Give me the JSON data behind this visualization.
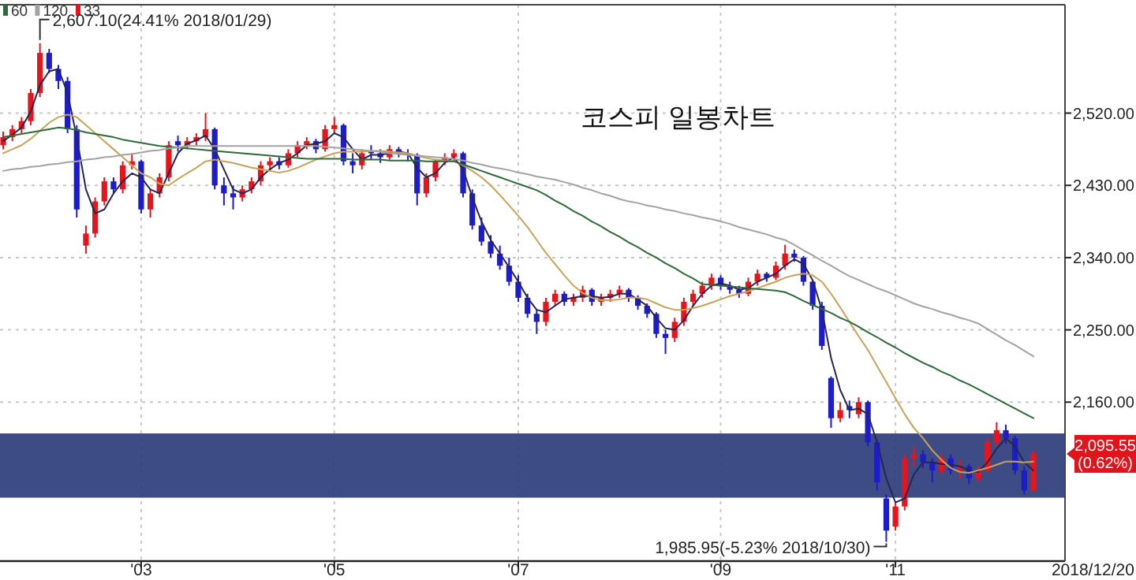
{
  "chart_data": {
    "type": "candlestick",
    "title": "코스피 일봉차트",
    "categories": [
      null,
      null,
      null,
      null,
      null,
      null,
      null,
      null,
      null,
      null,
      null,
      null,
      null,
      null,
      null,
      "'03",
      null,
      null,
      null,
      null,
      null,
      null,
      null,
      null,
      null,
      null,
      null,
      null,
      null,
      null,
      null,
      null,
      null,
      null,
      null,
      null,
      "'05",
      null,
      null,
      null,
      null,
      null,
      null,
      null,
      null,
      null,
      null,
      null,
      null,
      null,
      null,
      null,
      null,
      null,
      null,
      null,
      "'07",
      null,
      null,
      null,
      null,
      null,
      null,
      null,
      null,
      null,
      null,
      null,
      null,
      null,
      null,
      null,
      null,
      null,
      null,
      null,
      null,
      null,
      "'09",
      null,
      null,
      null,
      null,
      null,
      null,
      null,
      null,
      null,
      null,
      null,
      null,
      null,
      null,
      null,
      null,
      null,
      null,
      "'11",
      null,
      null,
      null,
      null,
      null,
      null,
      null,
      null,
      null,
      null,
      null,
      null,
      null,
      null,
      null
    ],
    "ylim": [
      1962,
      2655
    ],
    "yticks": [
      {
        "value": 2160,
        "label": "2,160.00"
      },
      {
        "value": 2250,
        "label": "2,250.00"
      },
      {
        "value": 2340,
        "label": "2,340.00"
      },
      {
        "value": 2430,
        "label": "2,430.00"
      },
      {
        "value": 2520,
        "label": "2,520.00"
      }
    ],
    "grid": true,
    "legend": "top left",
    "bands": [
      {
        "axis": "y",
        "from": 2041,
        "to": 2121,
        "color": "#2e3d7c"
      }
    ],
    "annotations": [
      "2,607.10(24.41% 2018/01/29)",
      "1,985.95(-5.23% 2018/10/30)",
      "2,095.55 (0.62%)",
      "2018/12/20"
    ],
    "series": [
      {
        "name": "33",
        "colors": [
          "#e8141b",
          "#e8141b",
          "#e8141b",
          "#e8141b",
          "#e8141b",
          "#1c1cc8",
          "#1c1cc8",
          "#1c1cc8",
          "#1c1cc8",
          "#e8141b",
          "#e8141b",
          "#e8141b",
          "#1c1cc8",
          "#e8141b",
          "#e8141b",
          "#1c1cc8",
          "#e8141b",
          "#e8141b",
          "#e8141b",
          "#1c1cc8",
          "#e8141b",
          "#e8141b",
          "#e8141b",
          "#1c1cc8",
          "#1c1cc8",
          "#1c1cc8",
          "#e8141b",
          "#e8141b",
          "#e8141b",
          "#e8141b",
          "#1c1cc8",
          "#e8141b",
          "#e8141b",
          "#e8141b",
          "#1c1cc8",
          "#e8141b",
          "#e8141b",
          "#1c1cc8",
          "#1c1cc8",
          "#e8141b",
          "#1c1cc8",
          "#1c1cc8",
          "#e8141b",
          "#1c1cc8",
          "#1c1cc8",
          "#1c1cc8",
          "#e8141b",
          "#e8141b",
          "#e8141b",
          "#e8141b",
          "#1c1cc8",
          "#1c1cc8",
          "#1c1cc8",
          "#1c1cc8",
          "#1c1cc8",
          "#1c1cc8",
          "#1c1cc8",
          "#1c1cc8",
          "#1c1cc8",
          "#e8141b",
          "#e8141b",
          "#1c1cc8",
          "#e8141b",
          "#e8141b",
          "#1c1cc8",
          "#e8141b",
          "#e8141b",
          "#e8141b",
          "#1c1cc8",
          "#1c1cc8",
          "#1c1cc8",
          "#1c1cc8",
          "#1c1cc8",
          "#e8141b",
          "#e8141b",
          "#e8141b",
          "#e8141b",
          "#e8141b",
          "#1c1cc8",
          "#1c1cc8",
          "#1c1cc8",
          "#e8141b",
          "#e8141b",
          "#1c1cc8",
          "#e8141b",
          "#e8141b",
          "#1c1cc8",
          "#1c1cc8",
          "#1c1cc8",
          "#1c1cc8",
          "#1c1cc8",
          "#e8141b",
          "#1c1cc8",
          "#e8141b",
          "#1c1cc8",
          "#1c1cc8",
          "#1c1cc8",
          "#e8141b",
          "#e8141b",
          "#e8141b",
          "#1c1cc8",
          "#1c1cc8",
          "#e8141b",
          "#1c1cc8",
          "#e8141b",
          "#1c1cc8",
          "#e8141b",
          "#e8141b",
          "#e8141b",
          "#1c1cc8",
          "#1c1cc8",
          "#1c1cc8",
          "#e8141b"
        ],
        "ohlc": [
          [
            2480,
            2497,
            2475,
            2490
          ],
          [
            2490,
            2505,
            2485,
            2500
          ],
          [
            2500,
            2515,
            2495,
            2510
          ],
          [
            2510,
            2550,
            2505,
            2545
          ],
          [
            2545,
            2607.1,
            2540,
            2595
          ],
          [
            2595,
            2600,
            2570,
            2575
          ],
          [
            2575,
            2580,
            2550,
            2560
          ],
          [
            2560,
            2565,
            2495,
            2500
          ],
          [
            2500,
            2505,
            2390,
            2400
          ],
          [
            2355,
            2380,
            2345,
            2370
          ],
          [
            2370,
            2415,
            2365,
            2410
          ],
          [
            2410,
            2440,
            2405,
            2435
          ],
          [
            2435,
            2440,
            2420,
            2425
          ],
          [
            2425,
            2460,
            2420,
            2455
          ],
          [
            2455,
            2470,
            2450,
            2460
          ],
          [
            2460,
            2462,
            2395,
            2400
          ],
          [
            2400,
            2425,
            2390,
            2420
          ],
          [
            2420,
            2445,
            2415,
            2440
          ],
          [
            2440,
            2485,
            2435,
            2480
          ],
          [
            2485,
            2492,
            2472,
            2480
          ],
          [
            2480,
            2490,
            2475,
            2485
          ],
          [
            2485,
            2495,
            2480,
            2490
          ],
          [
            2490,
            2520,
            2485,
            2500
          ],
          [
            2500,
            2502,
            2425,
            2430
          ],
          [
            2430,
            2440,
            2405,
            2420
          ],
          [
            2420,
            2430,
            2400,
            2415
          ],
          [
            2415,
            2430,
            2410,
            2425
          ],
          [
            2425,
            2440,
            2420,
            2435
          ],
          [
            2435,
            2460,
            2430,
            2455
          ],
          [
            2455,
            2465,
            2448,
            2460
          ],
          [
            2460,
            2465,
            2450,
            2455
          ],
          [
            2455,
            2475,
            2452,
            2470
          ],
          [
            2470,
            2485,
            2465,
            2480
          ],
          [
            2480,
            2490,
            2475,
            2485
          ],
          [
            2485,
            2488,
            2470,
            2475
          ],
          [
            2475,
            2505,
            2472,
            2500
          ],
          [
            2500,
            2515,
            2495,
            2505
          ],
          [
            2505,
            2507,
            2455,
            2460
          ],
          [
            2460,
            2470,
            2445,
            2455
          ],
          [
            2455,
            2475,
            2450,
            2470
          ],
          [
            2472,
            2480,
            2462,
            2470
          ],
          [
            2470,
            2475,
            2458,
            2465
          ],
          [
            2465,
            2480,
            2462,
            2475
          ],
          [
            2475,
            2478,
            2465,
            2470
          ],
          [
            2470,
            2475,
            2460,
            2468
          ],
          [
            2468,
            2470,
            2405,
            2420
          ],
          [
            2420,
            2445,
            2415,
            2440
          ],
          [
            2440,
            2462,
            2435,
            2460
          ],
          [
            2460,
            2470,
            2455,
            2465
          ],
          [
            2465,
            2475,
            2460,
            2470
          ],
          [
            2470,
            2472,
            2415,
            2420
          ],
          [
            2420,
            2425,
            2375,
            2380
          ],
          [
            2380,
            2390,
            2355,
            2360
          ],
          [
            2360,
            2368,
            2340,
            2345
          ],
          [
            2345,
            2355,
            2325,
            2330
          ],
          [
            2330,
            2340,
            2305,
            2310
          ],
          [
            2310,
            2318,
            2285,
            2290
          ],
          [
            2290,
            2295,
            2265,
            2270
          ],
          [
            2270,
            2275,
            2245,
            2260
          ],
          [
            2260,
            2290,
            2255,
            2285
          ],
          [
            2285,
            2300,
            2280,
            2295
          ],
          [
            2295,
            2298,
            2280,
            2285
          ],
          [
            2285,
            2295,
            2280,
            2290
          ],
          [
            2290,
            2305,
            2285,
            2300
          ],
          [
            2300,
            2302,
            2280,
            2285
          ],
          [
            2285,
            2295,
            2280,
            2290
          ],
          [
            2290,
            2300,
            2285,
            2295
          ],
          [
            2295,
            2305,
            2290,
            2300
          ],
          [
            2300,
            2302,
            2285,
            2290
          ],
          [
            2290,
            2293,
            2275,
            2280
          ],
          [
            2280,
            2283,
            2265,
            2270
          ],
          [
            2270,
            2272,
            2240,
            2245
          ],
          [
            2245,
            2250,
            2220,
            2240
          ],
          [
            2240,
            2265,
            2235,
            2260
          ],
          [
            2260,
            2290,
            2255,
            2285
          ],
          [
            2285,
            2300,
            2280,
            2295
          ],
          [
            2295,
            2310,
            2290,
            2305
          ],
          [
            2305,
            2320,
            2300,
            2315
          ],
          [
            2315,
            2318,
            2300,
            2305
          ],
          [
            2305,
            2310,
            2295,
            2300
          ],
          [
            2300,
            2305,
            2290,
            2295
          ],
          [
            2295,
            2315,
            2292,
            2310
          ],
          [
            2310,
            2325,
            2305,
            2320
          ],
          [
            2320,
            2322,
            2310,
            2315
          ],
          [
            2315,
            2335,
            2312,
            2330
          ],
          [
            2330,
            2356,
            2325,
            2345
          ],
          [
            2345,
            2350,
            2335,
            2340
          ],
          [
            2340,
            2342,
            2305,
            2310
          ],
          [
            2310,
            2312,
            2275,
            2280
          ],
          [
            2280,
            2285,
            2225,
            2230
          ],
          [
            2190,
            2192,
            2128,
            2140
          ],
          [
            2140,
            2160,
            2135,
            2150
          ],
          [
            2155,
            2162,
            2140,
            2150
          ],
          [
            2145,
            2166,
            2140,
            2160
          ],
          [
            2160,
            2162,
            2105,
            2110
          ],
          [
            2110,
            2112,
            2050,
            2060
          ],
          [
            2040,
            2045,
            1985.95,
            2000
          ],
          [
            2005,
            2035,
            2000,
            2030
          ],
          [
            2030,
            2095,
            2025,
            2090
          ],
          [
            2090,
            2105,
            2080,
            2095
          ],
          [
            2095,
            2100,
            2078,
            2085
          ],
          [
            2085,
            2090,
            2060,
            2075
          ],
          [
            2075,
            2095,
            2070,
            2090
          ],
          [
            2090,
            2095,
            2070,
            2075
          ],
          [
            2075,
            2088,
            2065,
            2080
          ],
          [
            2080,
            2083,
            2058,
            2065
          ],
          [
            2065,
            2080,
            2060,
            2075
          ],
          [
            2075,
            2115,
            2072,
            2110
          ],
          [
            2110,
            2135,
            2105,
            2125
          ],
          [
            2125,
            2132,
            2108,
            2115
          ],
          [
            2115,
            2118,
            2070,
            2075
          ],
          [
            2075,
            2080,
            2045,
            2050
          ],
          [
            2050,
            2100,
            2048,
            2095.55
          ]
        ]
      },
      {
        "type": "line",
        "color": "#262650",
        "values": [
          2485,
          2493,
          2502,
          2522,
          2555,
          2572,
          2575,
          2545,
          2490,
          2425,
          2395,
          2400,
          2420,
          2435,
          2445,
          2440,
          2425,
          2420,
          2445,
          2470,
          2482,
          2486,
          2492,
          2475,
          2450,
          2425,
          2420,
          2425,
          2440,
          2450,
          2458,
          2462,
          2470,
          2480,
          2482,
          2485,
          2495,
          2490,
          2475,
          2462,
          2468,
          2468,
          2470,
          2472,
          2470,
          2452,
          2440,
          2445,
          2458,
          2465,
          2450,
          2415,
          2385,
          2362,
          2345,
          2328,
          2310,
          2290,
          2275,
          2272,
          2280,
          2288,
          2290,
          2292,
          2292,
          2290,
          2291,
          2295,
          2295,
          2288,
          2280,
          2265,
          2252,
          2250,
          2262,
          2280,
          2295,
          2305,
          2308,
          2305,
          2300,
          2302,
          2310,
          2315,
          2320,
          2330,
          2338,
          2332,
          2312,
          2275,
          2215,
          2175,
          2150,
          2152,
          2145,
          2110,
          2065,
          2035,
          2040,
          2070,
          2085,
          2085,
          2083,
          2082,
          2080,
          2075,
          2073,
          2085,
          2102,
          2115,
          2105,
          2085,
          2075
        ]
      },
      {
        "type": "line",
        "color": "#c9a35a",
        "values": [
          2470,
          2475,
          2480,
          2488,
          2498,
          2508,
          2515,
          2518,
          2515,
          2505,
          2495,
          2485,
          2475,
          2465,
          2455,
          2445,
          2440,
          2432,
          2430,
          2438,
          2445,
          2452,
          2460,
          2462,
          2460,
          2458,
          2455,
          2452,
          2450,
          2448,
          2446,
          2448,
          2452,
          2457,
          2462,
          2466,
          2470,
          2472,
          2472,
          2472,
          2473,
          2473,
          2472,
          2471,
          2470,
          2467,
          2464,
          2462,
          2461,
          2460,
          2455,
          2448,
          2440,
          2430,
          2418,
          2405,
          2392,
          2378,
          2362,
          2346,
          2332,
          2318,
          2305,
          2296,
          2290,
          2287,
          2287,
          2288,
          2290,
          2290,
          2288,
          2283,
          2278,
          2275,
          2275,
          2277,
          2280,
          2284,
          2288,
          2292,
          2295,
          2298,
          2302,
          2306,
          2310,
          2315,
          2318,
          2320,
          2318,
          2310,
          2295,
          2278,
          2260,
          2242,
          2225,
          2205,
          2185,
          2165,
          2145,
          2128,
          2115,
          2100,
          2088,
          2078,
          2073,
          2072,
          2075,
          2078,
          2082,
          2086,
          2086,
          2085,
          2086
        ]
      },
      {
        "type": "line",
        "name": "60",
        "color": "#2f6a3a",
        "values": [
          2490,
          2492,
          2494,
          2496,
          2498,
          2500,
          2502,
          2501,
          2499,
          2496,
          2494,
          2492,
          2490,
          2487,
          2485,
          2483,
          2481,
          2479,
          2478,
          2477,
          2476,
          2475,
          2474,
          2473,
          2472,
          2471,
          2470,
          2469,
          2468,
          2467,
          2466,
          2465,
          2464,
          2463,
          2463,
          2463,
          2463,
          2463,
          2462,
          2462,
          2462,
          2462,
          2461,
          2461,
          2461,
          2461,
          2460,
          2460,
          2460,
          2460,
          2456,
          2452,
          2448,
          2444,
          2440,
          2436,
          2432,
          2428,
          2424,
          2418,
          2411,
          2405,
          2398,
          2392,
          2385,
          2379,
          2372,
          2366,
          2359,
          2353,
          2346,
          2340,
          2333,
          2327,
          2320,
          2314,
          2307,
          2306,
          2305,
          2304,
          2303,
          2302,
          2301,
          2300,
          2299,
          2297,
          2292,
          2286,
          2281,
          2276,
          2271,
          2265,
          2260,
          2254,
          2247,
          2241,
          2234,
          2228,
          2221,
          2215,
          2209,
          2204,
          2198,
          2193,
          2187,
          2182,
          2176,
          2170,
          2164,
          2158,
          2152,
          2146,
          2140
        ]
      },
      {
        "type": "line",
        "name": "120",
        "color": "#a3a3a3",
        "values": [
          2448,
          2450,
          2451,
          2453,
          2454,
          2456,
          2457,
          2459,
          2460,
          2462,
          2463,
          2465,
          2466,
          2468,
          2469,
          2471,
          2473,
          2474,
          2476,
          2477,
          2479,
          2479,
          2479,
          2479,
          2479,
          2479,
          2479,
          2479,
          2479,
          2479,
          2479,
          2479,
          2479,
          2479,
          2479,
          2478,
          2477,
          2476,
          2475,
          2474,
          2473,
          2472,
          2470,
          2469,
          2468,
          2467,
          2466,
          2465,
          2464,
          2463,
          2461,
          2458,
          2456,
          2453,
          2451,
          2449,
          2446,
          2444,
          2441,
          2439,
          2437,
          2434,
          2431,
          2427,
          2424,
          2420,
          2417,
          2413,
          2410,
          2408,
          2405,
          2403,
          2400,
          2398,
          2395,
          2393,
          2390,
          2388,
          2385,
          2382,
          2378,
          2375,
          2372,
          2369,
          2365,
          2362,
          2356,
          2349,
          2343,
          2336,
          2330,
          2323,
          2317,
          2312,
          2307,
          2302,
          2298,
          2293,
          2288,
          2283,
          2279,
          2276,
          2272,
          2269,
          2265,
          2262,
          2258,
          2251,
          2244,
          2237,
          2231,
          2224,
          2217
        ]
      }
    ]
  }
}
